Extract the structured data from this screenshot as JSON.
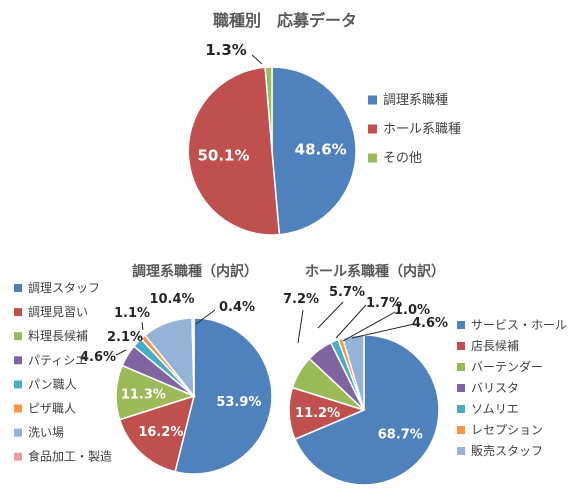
{
  "palette": {
    "text_title": "#595959",
    "text_legend": "#404040",
    "leader": "#262626"
  },
  "chart_data": [
    {
      "type": "pie",
      "title": "職種別　応募データ",
      "legend_position": "right",
      "slices": [
        {
          "label": "調理系職種",
          "value": 48.6,
          "display": "48.6%",
          "color": "#4F81BD"
        },
        {
          "label": "ホール系職種",
          "value": 50.1,
          "display": "50.1%",
          "color": "#C0504D"
        },
        {
          "label": "その他",
          "value": 1.3,
          "display": "1.3%",
          "color": "#9BBB59"
        }
      ]
    },
    {
      "type": "pie",
      "title": "調理系職種（内訳）",
      "legend_position": "left",
      "slices": [
        {
          "label": "調理スタッフ",
          "value": 53.9,
          "display": "53.9%",
          "color": "#4F81BD"
        },
        {
          "label": "調理見習い",
          "value": 16.2,
          "display": "16.2%",
          "color": "#C0504D"
        },
        {
          "label": "料理長候補",
          "value": 11.3,
          "display": "11.3%",
          "color": "#9BBB59"
        },
        {
          "label": "パティシエ",
          "value": 4.6,
          "display": "4.6%",
          "color": "#8064A2"
        },
        {
          "label": "パン職人",
          "value": 2.1,
          "display": "2.1%",
          "color": "#4BACC6"
        },
        {
          "label": "ピザ職人",
          "value": 1.1,
          "display": "1.1%",
          "color": "#F79646"
        },
        {
          "label": "洗い場",
          "value": 10.4,
          "display": "10.4%",
          "color": "#95B3D7"
        },
        {
          "label": "食品加工・製造",
          "value": 0.4,
          "display": "0.4%",
          "color": "#E6A0A0"
        }
      ]
    },
    {
      "type": "pie",
      "title": "ホール系職種（内訳）",
      "legend_position": "right",
      "slices": [
        {
          "label": "サービス・ホール",
          "value": 68.7,
          "display": "68.7%",
          "color": "#4F81BD"
        },
        {
          "label": "店長候補",
          "value": 11.2,
          "display": "11.2%",
          "color": "#C0504D"
        },
        {
          "label": "バーテンダー",
          "value": 7.2,
          "display": "7.2%",
          "color": "#9BBB59"
        },
        {
          "label": "バリスタ",
          "value": 5.7,
          "display": "5.7%",
          "color": "#8064A2"
        },
        {
          "label": "ソムリエ",
          "value": 1.7,
          "display": "1.7%",
          "color": "#4BACC6"
        },
        {
          "label": "レセプション",
          "value": 1.0,
          "display": "1.0%",
          "color": "#F79646"
        },
        {
          "label": "販売スタッフ",
          "value": 4.6,
          "display": "4.6%",
          "color": "#95B3D7"
        }
      ]
    }
  ]
}
